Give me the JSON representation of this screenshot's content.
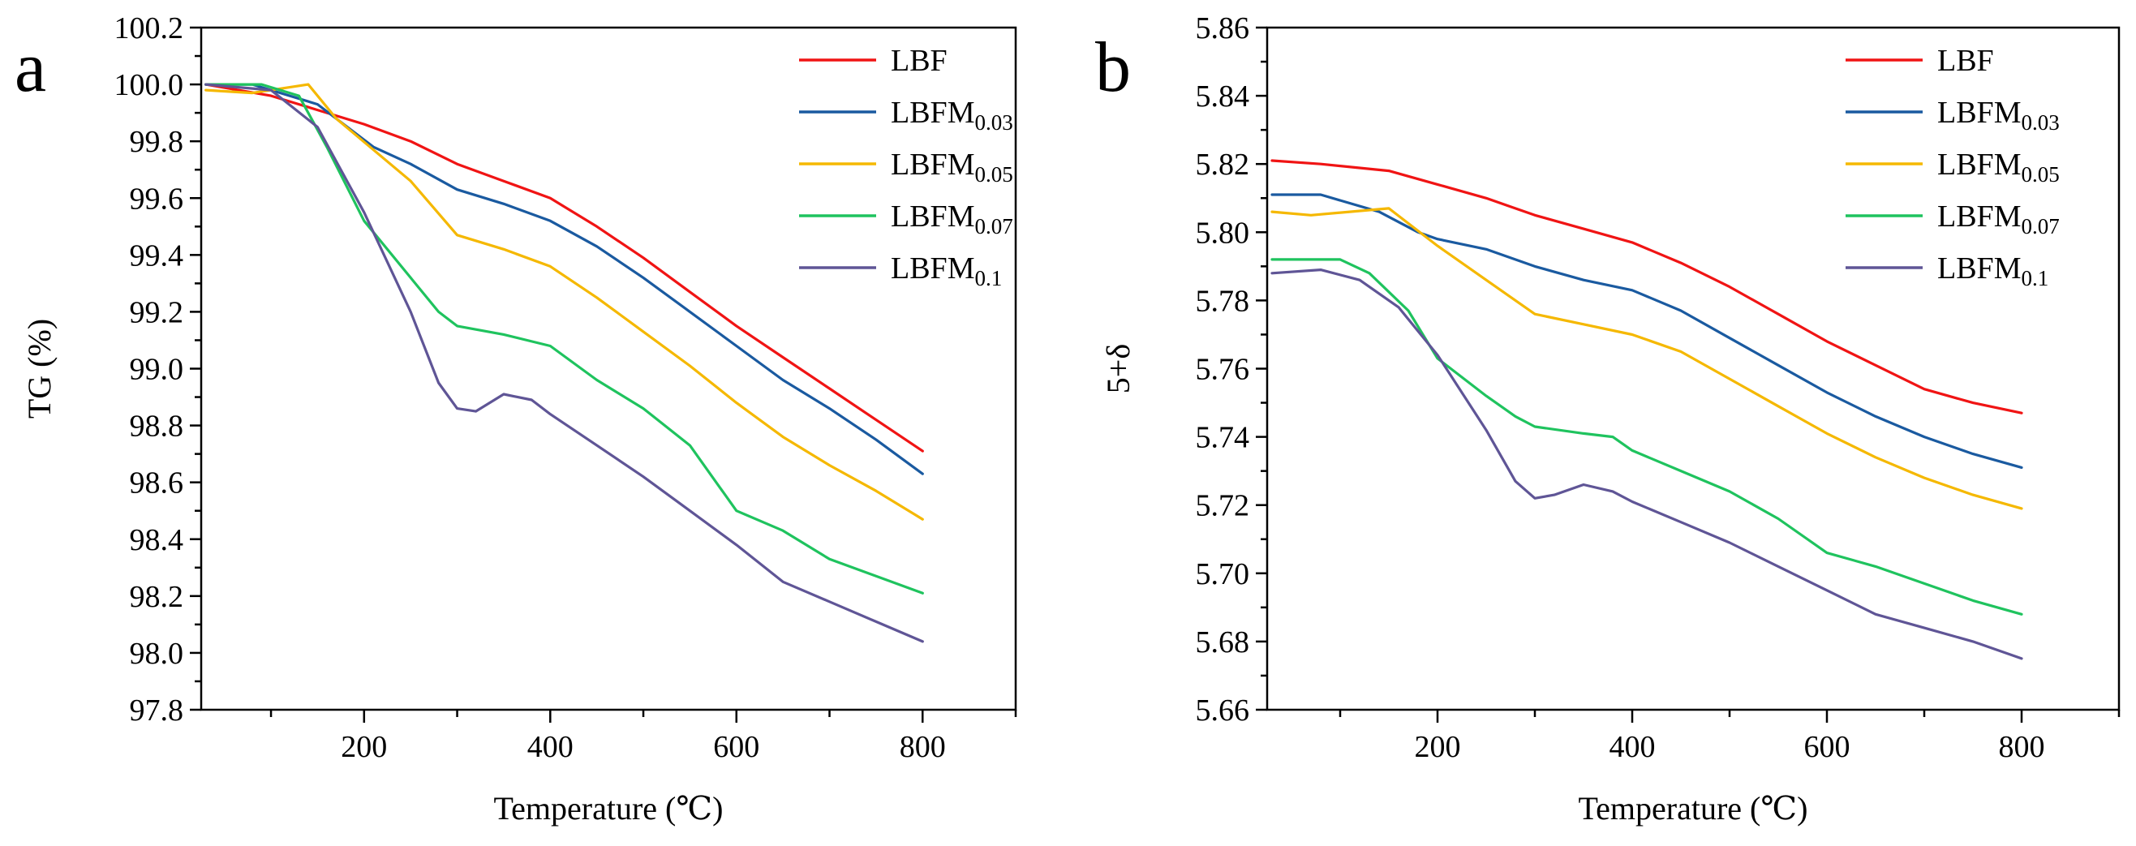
{
  "chart_data": [
    {
      "panel_label": "a",
      "type": "line",
      "xlabel": "Temperature (℃)",
      "ylabel": "TG (%)",
      "xlim": [
        25,
        900
      ],
      "ylim": [
        97.8,
        100.2
      ],
      "xticks": [
        {
          "value": 200,
          "label": "200"
        },
        {
          "value": 400,
          "label": "400"
        },
        {
          "value": 600,
          "label": "600"
        },
        {
          "value": 800,
          "label": "800"
        }
      ],
      "yticks": [
        {
          "value": 97.8,
          "label": "97.8"
        },
        {
          "value": 98.0,
          "label": "98.0"
        },
        {
          "value": 98.2,
          "label": "98.2"
        },
        {
          "value": 98.4,
          "label": "98.4"
        },
        {
          "value": 98.6,
          "label": "98.6"
        },
        {
          "value": 98.8,
          "label": "98.8"
        },
        {
          "value": 99.0,
          "label": "99.0"
        },
        {
          "value": 99.2,
          "label": "99.2"
        },
        {
          "value": 99.4,
          "label": "99.4"
        },
        {
          "value": 99.6,
          "label": "99.6"
        },
        {
          "value": 99.8,
          "label": "99.8"
        },
        {
          "value": 100.0,
          "label": "100.0"
        },
        {
          "value": 100.2,
          "label": "100.2"
        }
      ],
      "legend_position": "top-right",
      "grid": false,
      "series": [
        {
          "name": "LBF",
          "label_base": "LBF",
          "label_sub": "",
          "color": "#f01414",
          "x": [
            30,
            100,
            150,
            200,
            250,
            300,
            350,
            400,
            450,
            500,
            550,
            600,
            650,
            700,
            750,
            800
          ],
          "y": [
            100.0,
            99.96,
            99.91,
            99.86,
            99.8,
            99.72,
            99.66,
            99.6,
            99.5,
            99.39,
            99.27,
            99.15,
            99.04,
            98.93,
            98.82,
            98.71
          ]
        },
        {
          "name": "LBFM0.03",
          "label_base": "LBFM",
          "label_sub": "0.03",
          "color": "#1a5aa0",
          "x": [
            30,
            80,
            150,
            210,
            250,
            300,
            350,
            400,
            450,
            500,
            550,
            600,
            650,
            700,
            750,
            800
          ],
          "y": [
            100.0,
            100.0,
            99.93,
            99.78,
            99.72,
            99.63,
            99.58,
            99.52,
            99.43,
            99.32,
            99.2,
            99.08,
            98.96,
            98.86,
            98.75,
            98.63
          ]
        },
        {
          "name": "LBFM0.05",
          "label_base": "LBFM",
          "label_sub": "0.05",
          "color": "#f5b800",
          "x": [
            30,
            80,
            140,
            170,
            210,
            250,
            300,
            350,
            400,
            450,
            500,
            550,
            600,
            650,
            700,
            750,
            800
          ],
          "y": [
            99.98,
            99.97,
            100.0,
            99.88,
            99.77,
            99.66,
            99.47,
            99.42,
            99.36,
            99.25,
            99.13,
            99.01,
            98.88,
            98.76,
            98.66,
            98.57,
            98.47
          ]
        },
        {
          "name": "LBFM0.07",
          "label_base": "LBFM",
          "label_sub": "0.07",
          "color": "#1fc35e",
          "x": [
            30,
            90,
            130,
            160,
            200,
            250,
            280,
            300,
            350,
            400,
            450,
            500,
            550,
            600,
            650,
            700,
            750,
            800
          ],
          "y": [
            100.0,
            100.0,
            99.96,
            99.78,
            99.52,
            99.32,
            99.2,
            99.15,
            99.12,
            99.08,
            98.96,
            98.86,
            98.73,
            98.5,
            98.43,
            98.33,
            98.27,
            98.21
          ]
        },
        {
          "name": "LBFM0.1",
          "label_base": "LBFM",
          "label_sub": "0.1",
          "color": "#5f5596",
          "x": [
            30,
            100,
            150,
            200,
            250,
            280,
            300,
            320,
            350,
            380,
            400,
            450,
            500,
            550,
            600,
            650,
            700,
            750,
            800
          ],
          "y": [
            100.0,
            99.98,
            99.85,
            99.55,
            99.2,
            98.95,
            98.86,
            98.85,
            98.91,
            98.89,
            98.84,
            98.73,
            98.62,
            98.5,
            98.38,
            98.25,
            98.18,
            98.11,
            98.04
          ]
        }
      ]
    },
    {
      "panel_label": "b",
      "type": "line",
      "xlabel": "Temperature (℃)",
      "ylabel": "5+δ",
      "xlim": [
        25,
        900
      ],
      "ylim": [
        5.66,
        5.86
      ],
      "xticks": [
        {
          "value": 200,
          "label": "200"
        },
        {
          "value": 400,
          "label": "400"
        },
        {
          "value": 600,
          "label": "600"
        },
        {
          "value": 800,
          "label": "800"
        }
      ],
      "yticks": [
        {
          "value": 5.66,
          "label": "5.66"
        },
        {
          "value": 5.68,
          "label": "5.68"
        },
        {
          "value": 5.7,
          "label": "5.70"
        },
        {
          "value": 5.72,
          "label": "5.72"
        },
        {
          "value": 5.74,
          "label": "5.74"
        },
        {
          "value": 5.76,
          "label": "5.76"
        },
        {
          "value": 5.78,
          "label": "5.78"
        },
        {
          "value": 5.8,
          "label": "5.80"
        },
        {
          "value": 5.82,
          "label": "5.82"
        },
        {
          "value": 5.84,
          "label": "5.84"
        },
        {
          "value": 5.86,
          "label": "5.86"
        }
      ],
      "legend_position": "top-right",
      "grid": false,
      "series": [
        {
          "name": "LBF",
          "label_base": "LBF",
          "label_sub": "",
          "color": "#f01414",
          "x": [
            30,
            80,
            150,
            200,
            250,
            300,
            350,
            400,
            450,
            500,
            550,
            600,
            650,
            700,
            750,
            800
          ],
          "y": [
            5.821,
            5.82,
            5.818,
            5.814,
            5.81,
            5.805,
            5.801,
            5.797,
            5.791,
            5.784,
            5.776,
            5.768,
            5.761,
            5.754,
            5.75,
            5.747
          ]
        },
        {
          "name": "LBFM0.03",
          "label_base": "LBFM",
          "label_sub": "0.03",
          "color": "#1a5aa0",
          "x": [
            30,
            80,
            140,
            180,
            200,
            250,
            300,
            350,
            400,
            450,
            500,
            550,
            600,
            650,
            700,
            750,
            800
          ],
          "y": [
            5.811,
            5.811,
            5.806,
            5.8,
            5.798,
            5.795,
            5.79,
            5.786,
            5.783,
            5.777,
            5.769,
            5.761,
            5.753,
            5.746,
            5.74,
            5.735,
            5.731
          ]
        },
        {
          "name": "LBFM0.05",
          "label_base": "LBFM",
          "label_sub": "0.05",
          "color": "#f5b800",
          "x": [
            30,
            70,
            150,
            200,
            250,
            300,
            350,
            400,
            450,
            500,
            550,
            600,
            650,
            700,
            750,
            800
          ],
          "y": [
            5.806,
            5.805,
            5.807,
            5.796,
            5.786,
            5.776,
            5.773,
            5.77,
            5.765,
            5.757,
            5.749,
            5.741,
            5.734,
            5.728,
            5.723,
            5.719
          ]
        },
        {
          "name": "LBFM0.07",
          "label_base": "LBFM",
          "label_sub": "0.07",
          "color": "#1fc35e",
          "x": [
            30,
            100,
            130,
            170,
            200,
            250,
            280,
            300,
            350,
            380,
            400,
            450,
            500,
            550,
            600,
            650,
            700,
            750,
            800
          ],
          "y": [
            5.792,
            5.792,
            5.788,
            5.777,
            5.763,
            5.752,
            5.746,
            5.743,
            5.741,
            5.74,
            5.736,
            5.73,
            5.724,
            5.716,
            5.706,
            5.702,
            5.697,
            5.692,
            5.688
          ]
        },
        {
          "name": "LBFM0.1",
          "label_base": "LBFM",
          "label_sub": "0.1",
          "color": "#5f5596",
          "x": [
            30,
            80,
            120,
            160,
            200,
            250,
            280,
            300,
            320,
            350,
            380,
            400,
            450,
            500,
            550,
            600,
            650,
            700,
            750,
            800
          ],
          "y": [
            5.788,
            5.789,
            5.786,
            5.778,
            5.764,
            5.742,
            5.727,
            5.722,
            5.723,
            5.726,
            5.724,
            5.721,
            5.715,
            5.709,
            5.702,
            5.695,
            5.688,
            5.684,
            5.68,
            5.675
          ]
        }
      ]
    }
  ]
}
